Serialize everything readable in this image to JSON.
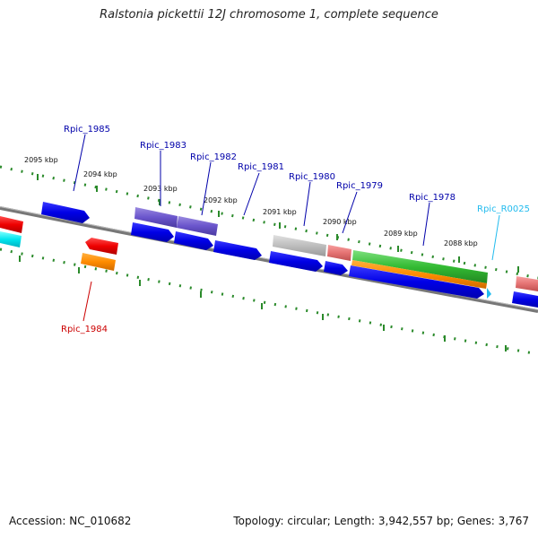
{
  "title": "Ralstonia pickettii 12J chromosome 1, complete sequence",
  "footer": {
    "accession": "Accession: NC_010682",
    "stats": "Topology: circular; Length: 3,942,557 bp; Genes: 3,767"
  },
  "ruler": {
    "labels": [
      "2095 kbp",
      "2094 kbp",
      "2093 kbp",
      "2092 kbp",
      "2091 kbp",
      "2090 kbp",
      "2089 kbp",
      "2088 kbp"
    ]
  },
  "genes": [
    {
      "name": "Rpic_1985",
      "color": "#0000aa"
    },
    {
      "name": "Rpic_1984",
      "color": "#cc0000"
    },
    {
      "name": "Rpic_1983",
      "color": "#0000aa"
    },
    {
      "name": "Rpic_1982",
      "color": "#0000aa"
    },
    {
      "name": "Rpic_1981",
      "color": "#0000aa"
    },
    {
      "name": "Rpic_1980",
      "color": "#0000aa"
    },
    {
      "name": "Rpic_1979",
      "color": "#0000aa"
    },
    {
      "name": "Rpic_1978",
      "color": "#0000aa"
    },
    {
      "name": "Rpic_R0025",
      "color": "#22bbee"
    }
  ]
}
